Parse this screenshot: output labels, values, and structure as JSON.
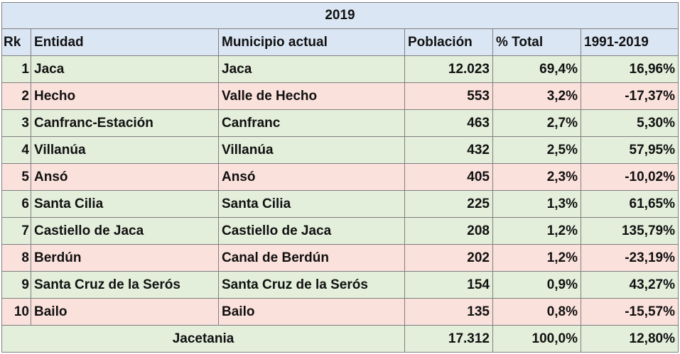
{
  "title": "2019",
  "headers": {
    "rk": "Rk",
    "entidad": "Entidad",
    "municipio": "Municipio actual",
    "poblacion": "Población",
    "pct": "% Total",
    "change": "1991-2019"
  },
  "rows": [
    {
      "rk": "1",
      "entidad": "Jaca",
      "municipio": "Jaca",
      "poblacion": "12.023",
      "pct": "69,4%",
      "change": "16,96%"
    },
    {
      "rk": "2",
      "entidad": "Hecho",
      "municipio": "Valle de Hecho",
      "poblacion": "553",
      "pct": "3,2%",
      "change": "-17,37%"
    },
    {
      "rk": "3",
      "entidad": "Canfranc-Estación",
      "municipio": "Canfranc",
      "poblacion": "463",
      "pct": "2,7%",
      "change": "5,30%"
    },
    {
      "rk": "4",
      "entidad": "Villanúa",
      "municipio": "Villanúa",
      "poblacion": "432",
      "pct": "2,5%",
      "change": "57,95%"
    },
    {
      "rk": "5",
      "entidad": "Ansó",
      "municipio": "Ansó",
      "poblacion": "405",
      "pct": "2,3%",
      "change": "-10,02%"
    },
    {
      "rk": "6",
      "entidad": "Santa Cilia",
      "municipio": "Santa Cilia",
      "poblacion": "225",
      "pct": "1,3%",
      "change": "61,65%"
    },
    {
      "rk": "7",
      "entidad": "Castiello de Jaca",
      "municipio": "Castiello de Jaca",
      "poblacion": "208",
      "pct": "1,2%",
      "change": "135,79%"
    },
    {
      "rk": "8",
      "entidad": "Berdún",
      "municipio": "Canal de Berdún",
      "poblacion": "202",
      "pct": "1,2%",
      "change": "-23,19%"
    },
    {
      "rk": "9",
      "entidad": "Santa Cruz de la Serós",
      "municipio": "Santa Cruz de la Serós",
      "poblacion": "154",
      "pct": "0,9%",
      "change": "43,27%"
    },
    {
      "rk": "10",
      "entidad": "Bailo",
      "municipio": "Bailo",
      "poblacion": "135",
      "pct": "0,8%",
      "change": "-15,57%"
    }
  ],
  "total": {
    "label": "Jacetania",
    "poblacion": "17.312",
    "pct": "100,0%",
    "change": "12,80%"
  },
  "colors": {
    "header_bg": "#dbe6f4",
    "positive_row_bg": "#e3eedb",
    "negative_row_bg": "#fbe1dc",
    "border": "#7f7f7f"
  }
}
